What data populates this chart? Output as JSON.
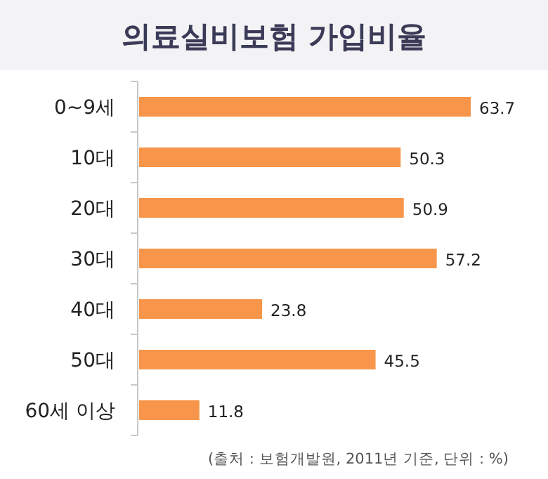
{
  "chart_data": {
    "type": "bar",
    "orientation": "horizontal",
    "title": "의료실비보험 가입비율",
    "categories": [
      "0~9세",
      "10대",
      "20대",
      "30대",
      "40대",
      "50대",
      "60세 이상"
    ],
    "values": [
      63.7,
      50.3,
      50.9,
      57.2,
      23.8,
      45.5,
      11.8
    ],
    "color": "#f7964a",
    "data_labels": true,
    "annotations": [
      "(출처 : 보험개발원, 2011년 기준, 단위 : %)"
    ]
  }
}
